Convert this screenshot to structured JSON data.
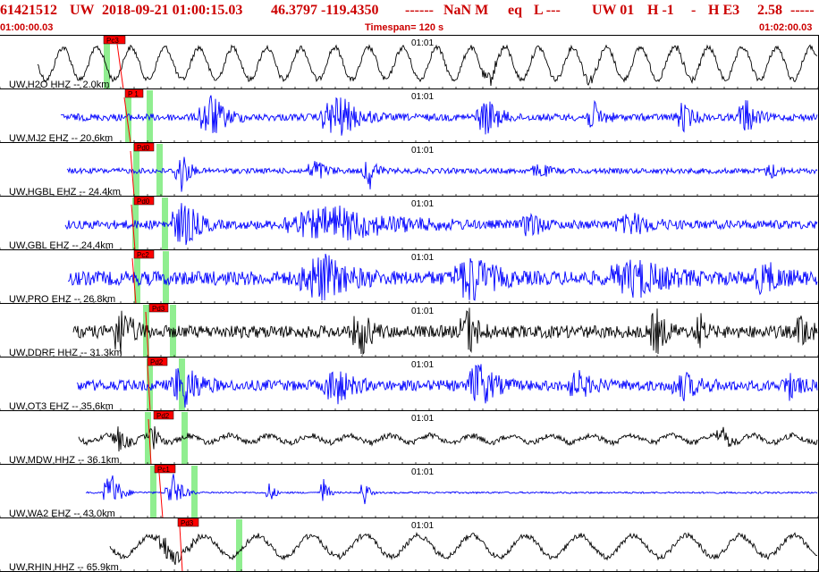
{
  "header": {
    "event_id": "61421512",
    "network": "UW",
    "datetime": "2018-09-21 01:00:15.03",
    "location": "46.3797 -119.4350",
    "depth": "------",
    "magnitude": "NaN M",
    "event_type": "eq",
    "quality": "L ---",
    "review": "UW 01",
    "h_field": "H -1",
    "dash": "-",
    "he_field": "H E3",
    "value": "2.58",
    "trailing": "-----",
    "start_time": "01:00:00.03",
    "timespan": "Timespan= 120 s",
    "end_time": "01:02:00.03"
  },
  "minute_marker_label": "01:01",
  "colors": {
    "header_text": "#cc0000",
    "trace_blue": "#0000ff",
    "trace_black": "#000000",
    "pick_marker": "#ff0000",
    "pick_window": "#90ee90",
    "separator": "#000000"
  },
  "traces": [
    {
      "label": "UW.H2O HHZ -- 2.0km",
      "phase": "Pc3",
      "color": "black"
    },
    {
      "label": "UW.MJ2 EHZ -- 20.6km",
      "phase": "P 1",
      "color": "blue"
    },
    {
      "label": "UW.HGBL EHZ -- 24.4km",
      "phase": "Pd0",
      "color": "blue"
    },
    {
      "label": "UW.GBL EHZ -- 24.4km",
      "phase": "Pd0",
      "color": "blue"
    },
    {
      "label": "UW.PRO EHZ -- 26.8km",
      "phase": "Pc2",
      "color": "blue"
    },
    {
      "label": "UW.DDRF HHZ -- 31.3km",
      "phase": "Pd3",
      "color": "black"
    },
    {
      "label": "UW.OT3 EHZ -- 35.6km",
      "phase": "Pd2",
      "color": "blue"
    },
    {
      "label": "UW.MDW HHZ -- 36.1km",
      "phase": "Pd2",
      "color": "black"
    },
    {
      "label": "UW.WA2 EHZ -- 43.0km",
      "phase": "Pc1",
      "color": "blue"
    },
    {
      "label": "UW.RHIN HHZ -- 65.9km",
      "phase": "Pd3",
      "color": "black"
    }
  ]
}
